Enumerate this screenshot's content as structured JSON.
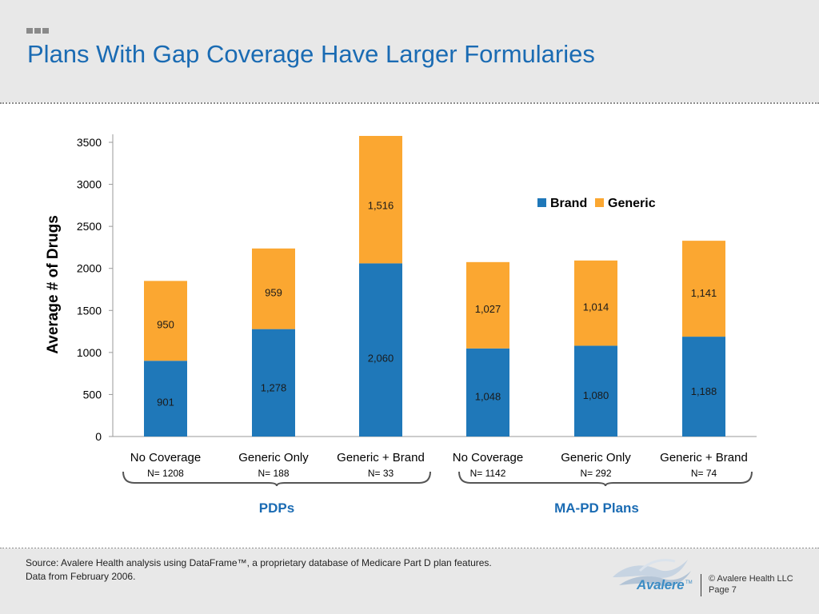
{
  "header": {
    "title": "Plans With Gap Coverage Have Larger Formularies"
  },
  "colors": {
    "brand": "#1f78b9",
    "generic": "#fba731",
    "title": "#1a6bb3",
    "group_label": "#1a6bb3"
  },
  "chart_data": {
    "type": "bar",
    "stacked": true,
    "title": "",
    "xlabel": "",
    "ylabel": "Average # of Drugs",
    "ylim": [
      0,
      3500
    ],
    "yticks": [
      "0",
      "500",
      "1000",
      "1500",
      "2000",
      "2500",
      "3000",
      "3500"
    ],
    "grid": false,
    "legend_position": "top-right",
    "categories": [
      "No Coverage",
      "Generic Only",
      "Generic + Brand",
      "No Coverage",
      "Generic Only",
      "Generic + Brand"
    ],
    "sample_sizes": [
      "N= 1208",
      "N= 188",
      "N= 33",
      "N= 1142",
      "N= 292",
      "N= 74"
    ],
    "series": [
      {
        "name": "Brand",
        "values": [
          901,
          1278,
          2060,
          1048,
          1080,
          1188
        ],
        "labels": [
          "901",
          "1,278",
          "2,060",
          "1,048",
          "1,080",
          "1,188"
        ]
      },
      {
        "name": "Generic",
        "values": [
          950,
          959,
          1516,
          1027,
          1014,
          1141
        ],
        "labels": [
          "950",
          "959",
          "1,516",
          "1,027",
          "1,014",
          "1,141"
        ]
      }
    ],
    "groups": [
      {
        "label": "PDPs",
        "categories": [
          0,
          1,
          2
        ]
      },
      {
        "label": "MA-PD Plans",
        "categories": [
          3,
          4,
          5
        ]
      }
    ]
  },
  "footer": {
    "source_line1": "Source:  Avalere Health analysis using DataFrame™, a proprietary database of Medicare Part D plan features.",
    "source_line2": "Data from February 2006.",
    "logo_text": "Avalere",
    "logo_tm": "TM",
    "copyright": "© Avalere Health LLC",
    "page": "Page 7"
  }
}
